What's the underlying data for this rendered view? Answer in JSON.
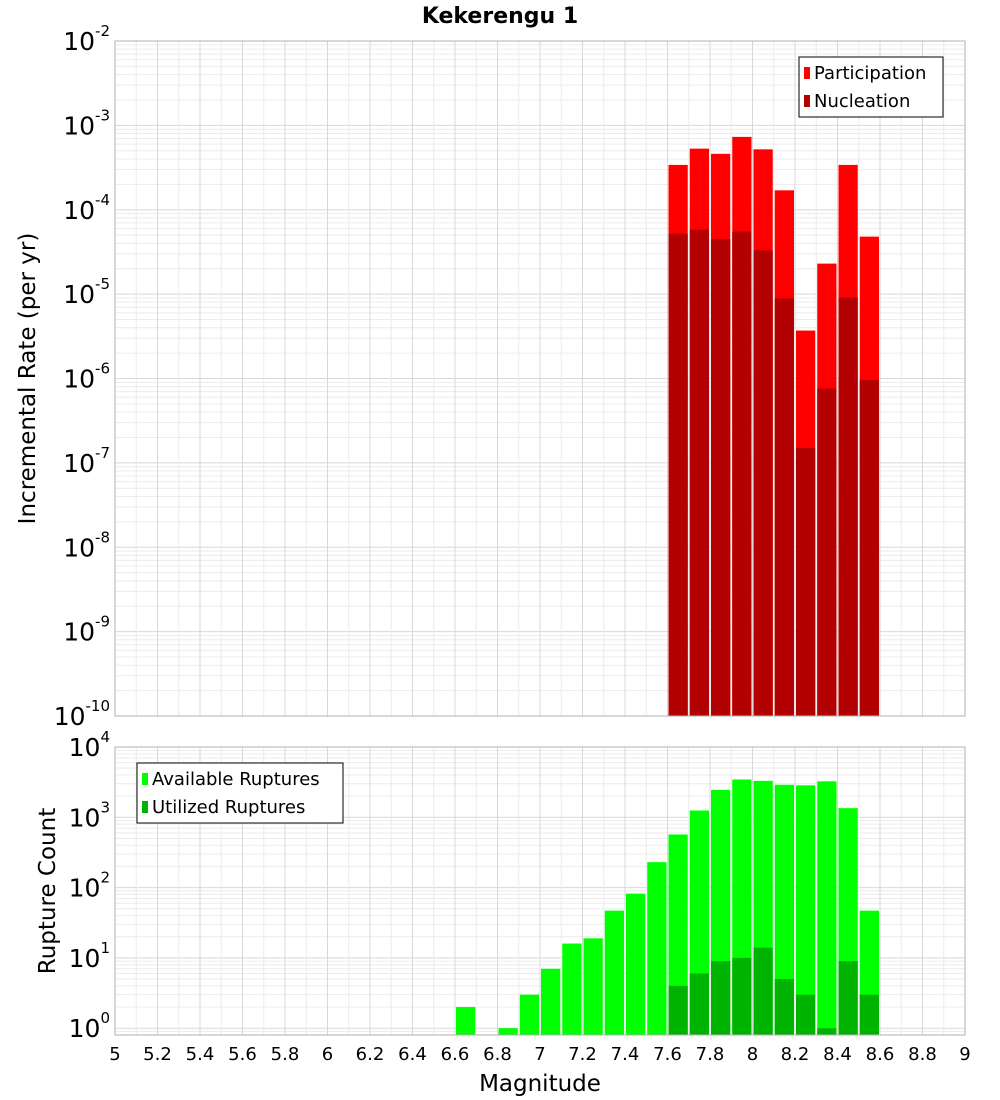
{
  "chart_data": {
    "title": "Kekerengu 1",
    "xlabel": "Magnitude",
    "x_ticks": [
      "5",
      "5.2",
      "5.4",
      "5.6",
      "5.8",
      "6",
      "6.2",
      "6.4",
      "6.6",
      "6.8",
      "7",
      "7.2",
      "7.4",
      "7.6",
      "7.8",
      "8",
      "8.2",
      "8.4",
      "8.6",
      "8.8",
      "9"
    ],
    "xlim": [
      5,
      9
    ],
    "bin_width": 0.1,
    "panels": [
      {
        "type": "bar",
        "ylabel": "Incremental Rate (per yr)",
        "yscale": "log",
        "ylim": [
          1e-10,
          0.01
        ],
        "y_ticks": [
          {
            "base": "10",
            "exp": "-10"
          },
          {
            "base": "10",
            "exp": "-9"
          },
          {
            "base": "10",
            "exp": "-8"
          },
          {
            "base": "10",
            "exp": "-7"
          },
          {
            "base": "10",
            "exp": "-6"
          },
          {
            "base": "10",
            "exp": "-5"
          },
          {
            "base": "10",
            "exp": "-4"
          },
          {
            "base": "10",
            "exp": "-3"
          },
          {
            "base": "10",
            "exp": "-2"
          }
        ],
        "grid": true,
        "legend_position": "top-right",
        "x": [
          7.65,
          7.75,
          7.85,
          7.95,
          8.05,
          8.15,
          8.25,
          8.35,
          8.45,
          8.55
        ],
        "series": [
          {
            "name": "Participation",
            "color": "#ff0000",
            "values": [
              0.00034,
              0.00053,
              0.00046,
              0.00073,
              0.00052,
              0.00017,
              3.7e-06,
              2.3e-05,
              0.00034,
              4.8e-05
            ]
          },
          {
            "name": "Nucleation",
            "color": "#b30000",
            "values": [
              5.2e-05,
              5.8e-05,
              4.5e-05,
              5.5e-05,
              3.3e-05,
              8.9e-06,
              1.5e-07,
              7.6e-07,
              9.1e-06,
              9.6e-07
            ]
          }
        ]
      },
      {
        "type": "bar",
        "ylabel": "Rupture Count",
        "yscale": "log",
        "ylim": [
          0.8,
          10000
        ],
        "y_ticks": [
          {
            "base": "10",
            "exp": "0"
          },
          {
            "base": "10",
            "exp": "1"
          },
          {
            "base": "10",
            "exp": "2"
          },
          {
            "base": "10",
            "exp": "3"
          },
          {
            "base": "10",
            "exp": "4"
          }
        ],
        "grid": true,
        "legend_position": "top-left",
        "x": [
          6.65,
          6.85,
          6.95,
          7.05,
          7.15,
          7.25,
          7.35,
          7.45,
          7.55,
          7.65,
          7.75,
          7.85,
          7.95,
          8.05,
          8.15,
          8.25,
          8.35,
          8.45,
          8.55
        ],
        "series": [
          {
            "name": "Available Ruptures",
            "color": "#00ff00",
            "values": [
              2,
              1,
              3,
              7,
              16,
              19,
              47,
              82,
              230,
              570,
              1250,
              2450,
              3450,
              3300,
              2900,
              2850,
              3250,
              1350,
              47
            ]
          },
          {
            "name": "Utilized Ruptures",
            "color": "#00b300",
            "values": [
              0,
              0,
              0,
              0,
              0,
              0,
              0,
              0,
              0,
              4,
              6,
              9,
              10,
              14,
              5,
              3,
              1,
              9,
              3
            ]
          }
        ]
      }
    ]
  }
}
